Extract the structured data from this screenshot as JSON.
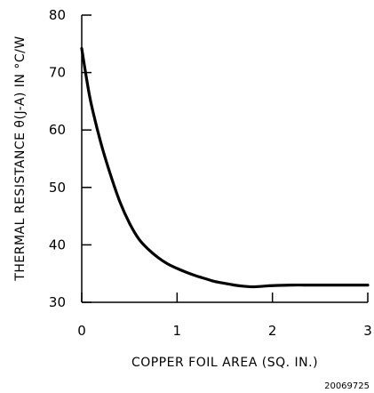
{
  "chart_data": {
    "type": "line",
    "xlabel": "COPPER FOIL AREA (SQ. IN.)",
    "ylabel": "THERMAL RESISTANCE θ(J-A) IN °C/W",
    "xlim": [
      0,
      3
    ],
    "ylim": [
      30,
      80
    ],
    "x_ticks": [
      "0",
      "1",
      "2",
      "3"
    ],
    "y_ticks": [
      "30",
      "40",
      "50",
      "60",
      "70",
      "80"
    ],
    "grid": false,
    "series": [
      {
        "x": [
          0.0,
          0.05,
          0.1,
          0.2,
          0.3,
          0.4,
          0.5,
          0.6,
          0.7,
          0.8,
          0.9,
          1.0,
          1.1,
          1.2,
          1.3,
          1.4,
          1.5,
          1.6,
          1.7,
          1.8,
          1.9,
          2.0,
          2.2,
          2.4,
          2.6,
          2.8,
          3.0
        ],
        "y": [
          74.2,
          69.0,
          64.5,
          57.8,
          52.3,
          47.5,
          43.8,
          41.0,
          39.2,
          37.8,
          36.7,
          35.9,
          35.2,
          34.6,
          34.1,
          33.6,
          33.3,
          33.0,
          32.8,
          32.7,
          32.8,
          32.9,
          33.0,
          33.0,
          33.0,
          33.0,
          33.0
        ]
      }
    ],
    "figure_id": "20069725"
  },
  "colors": {
    "line": "#000000",
    "axis": "#000000",
    "background": "#ffffff"
  }
}
